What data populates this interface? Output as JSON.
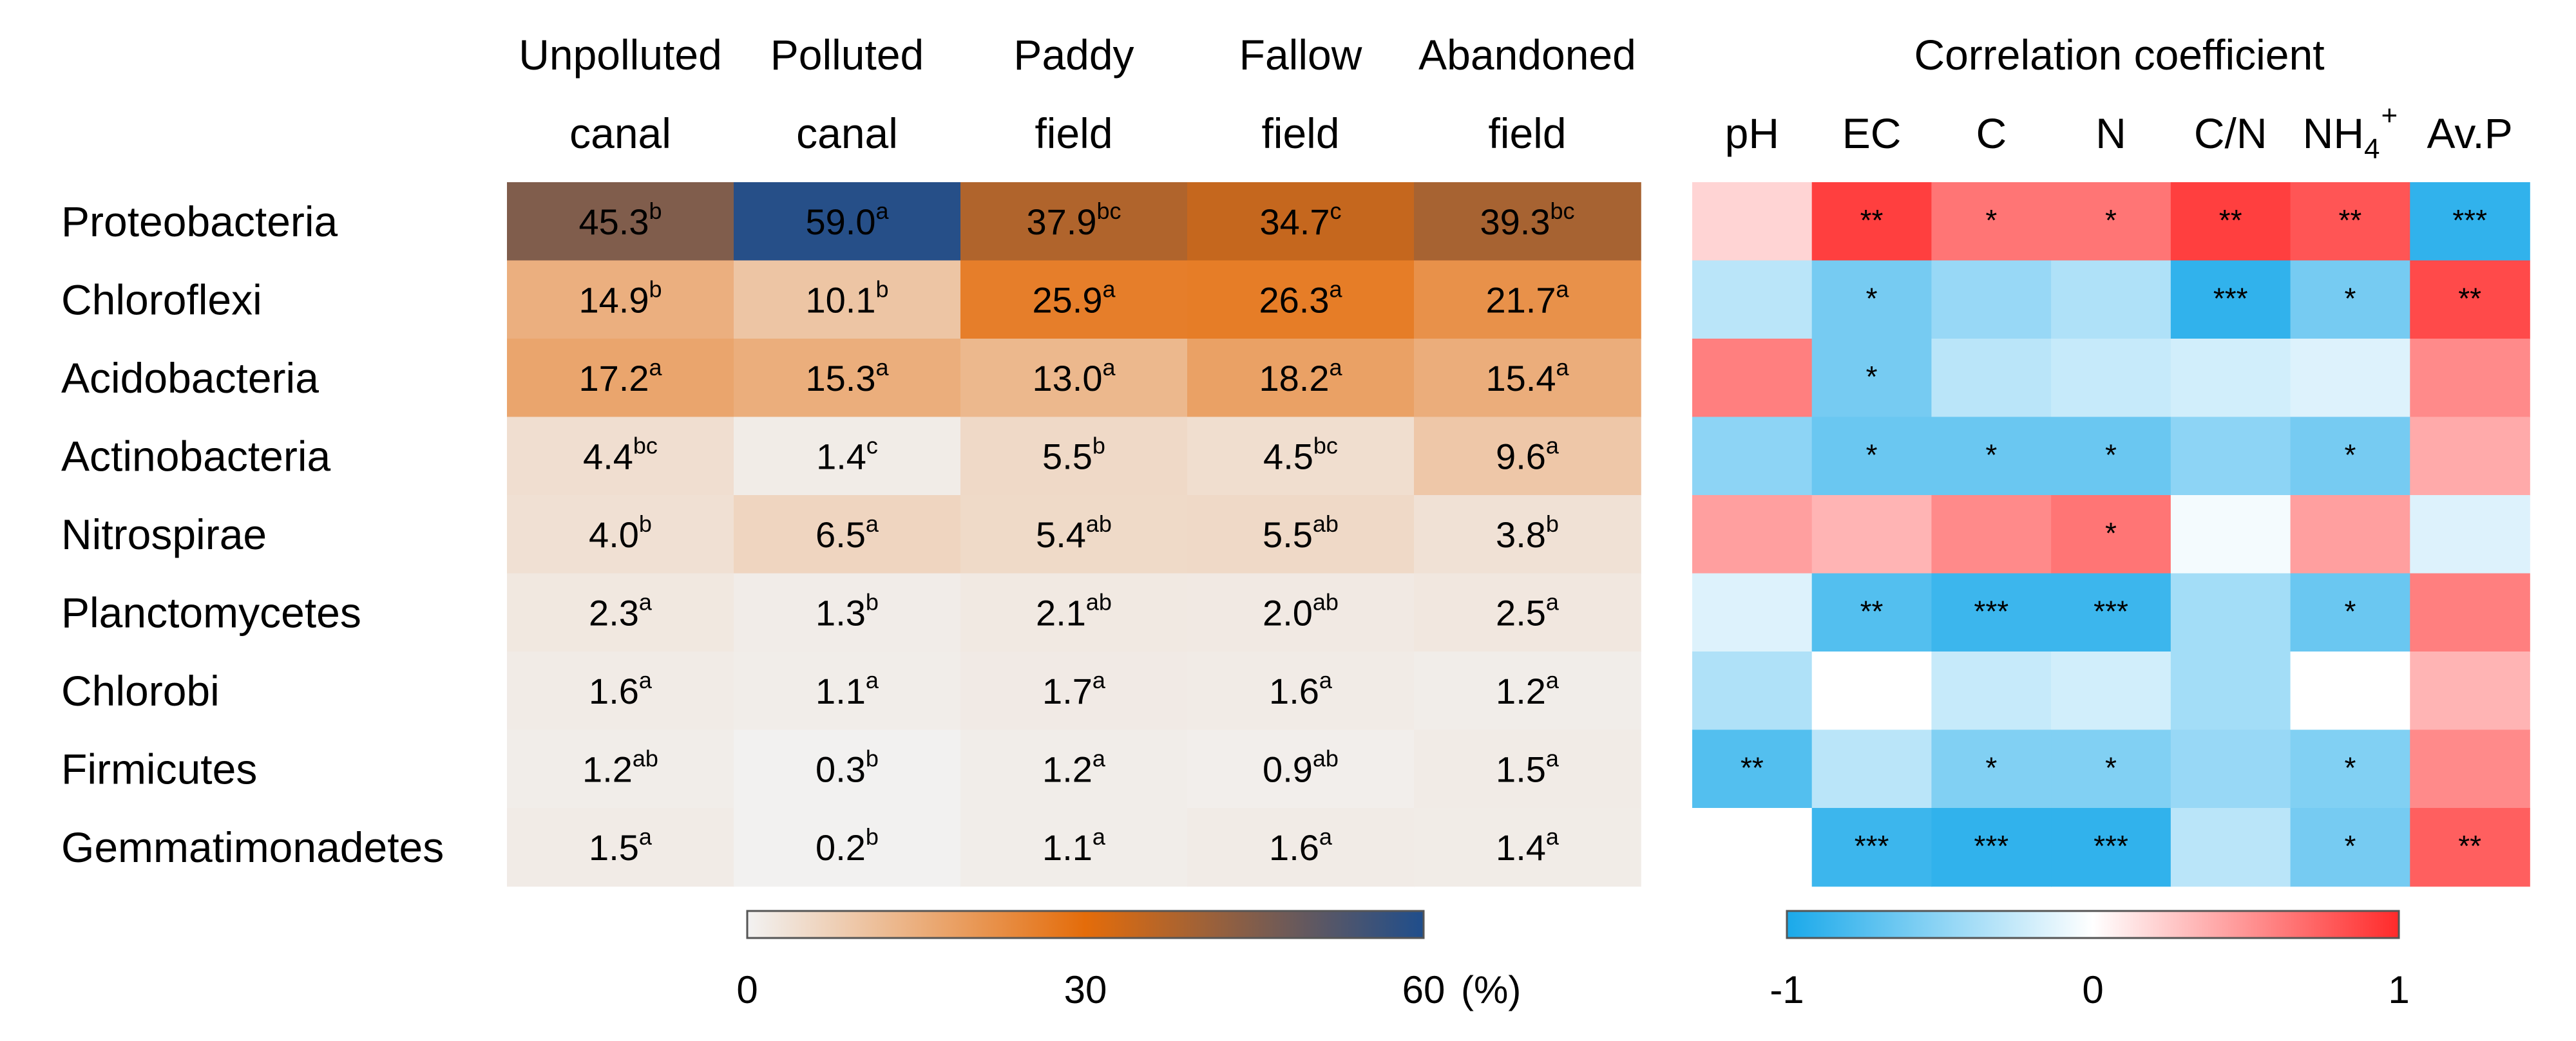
{
  "chart_data": [
    {
      "type": "heatmap",
      "title": "",
      "units": "%",
      "columns": [
        {
          "line1": "Unpolluted",
          "line2": "canal"
        },
        {
          "line1": "Polluted",
          "line2": "canal"
        },
        {
          "line1": "Paddy",
          "line2": "field"
        },
        {
          "line1": "Fallow",
          "line2": "field"
        },
        {
          "line1": "Abandoned",
          "line2": "field"
        }
      ],
      "rows": [
        "Proteobacteria",
        "Chloroflexi",
        "Acidobacteria",
        "Actinobacteria",
        "Nitrospirae",
        "Planctomycetes",
        "Chlorobi",
        "Firmicutes",
        "Gemmatimonadetes"
      ],
      "values": [
        [
          45.3,
          59.0,
          37.9,
          34.7,
          39.3
        ],
        [
          14.9,
          10.1,
          25.9,
          26.3,
          21.7
        ],
        [
          17.2,
          15.3,
          13.0,
          18.2,
          15.4
        ],
        [
          4.4,
          1.4,
          5.5,
          4.5,
          9.6
        ],
        [
          4.0,
          6.5,
          5.4,
          5.5,
          3.8
        ],
        [
          2.3,
          1.3,
          2.1,
          2.0,
          2.5
        ],
        [
          1.6,
          1.1,
          1.7,
          1.6,
          1.2
        ],
        [
          1.2,
          0.3,
          1.2,
          0.9,
          1.5
        ],
        [
          1.5,
          0.2,
          1.1,
          1.6,
          1.4
        ]
      ],
      "labels": [
        [
          "45.3",
          "59.0",
          "37.9",
          "34.7",
          "39.3"
        ],
        [
          "14.9",
          "10.1",
          "25.9",
          "26.3",
          "21.7"
        ],
        [
          "17.2",
          "15.3",
          "13.0",
          "18.2",
          "15.4"
        ],
        [
          "4.4",
          "1.4",
          "5.5",
          "4.5",
          "9.6"
        ],
        [
          "4.0",
          "6.5",
          "5.4",
          "5.5",
          "3.8"
        ],
        [
          "2.3",
          "1.3",
          "2.1",
          "2.0",
          "2.5"
        ],
        [
          "1.6",
          "1.1",
          "1.7",
          "1.6",
          "1.2"
        ],
        [
          "1.2",
          "0.3",
          "1.2",
          "0.9",
          "1.5"
        ],
        [
          "1.5",
          "0.2",
          "1.1",
          "1.6",
          "1.4"
        ]
      ],
      "letters": [
        [
          "b",
          "a",
          "bc",
          "c",
          "bc"
        ],
        [
          "b",
          "b",
          "a",
          "a",
          "a"
        ],
        [
          "a",
          "a",
          "a",
          "a",
          "a"
        ],
        [
          "bc",
          "c",
          "b",
          "bc",
          "a"
        ],
        [
          "b",
          "a",
          "ab",
          "ab",
          "b"
        ],
        [
          "a",
          "b",
          "ab",
          "ab",
          "a"
        ],
        [
          "a",
          "a",
          "a",
          "a",
          "a"
        ],
        [
          "ab",
          "b",
          "a",
          "ab",
          "a"
        ],
        [
          "a",
          "b",
          "a",
          "a",
          "a"
        ]
      ],
      "colorbar": {
        "ticks": [
          "0",
          "30",
          "60"
        ],
        "unit_label": "(%)",
        "range": [
          0,
          60
        ],
        "stops": [
          "#f2f2f2",
          "#e46c0a",
          "#1f4e8c"
        ]
      }
    },
    {
      "type": "heatmap",
      "title": "Correlation coefficient",
      "columns": [
        "pH",
        "EC",
        "C",
        "N",
        "C/N",
        "NH4+",
        "Av.P"
      ],
      "column_display": [
        {
          "base": "pH",
          "sub": "",
          "sup": ""
        },
        {
          "base": "EC",
          "sub": "",
          "sup": ""
        },
        {
          "base": "C",
          "sub": "",
          "sup": ""
        },
        {
          "base": "N",
          "sub": "",
          "sup": ""
        },
        {
          "base": "C/N",
          "sub": "",
          "sup": ""
        },
        {
          "base": "NH",
          "sub": "4",
          "sup": "+"
        },
        {
          "base": "Av.P",
          "sub": "",
          "sup": ""
        }
      ],
      "rows": [
        "Proteobacteria",
        "Chloroflexi",
        "Acidobacteria",
        "Actinobacteria",
        "Nitrospirae",
        "Planctomycetes",
        "Chlorobi",
        "Firmicutes",
        "Gemmatimonadetes"
      ],
      "values": [
        [
          0.2,
          0.9,
          0.65,
          0.65,
          0.9,
          0.8,
          -0.9
        ],
        [
          -0.3,
          -0.6,
          -0.45,
          -0.35,
          -0.9,
          -0.6,
          0.85
        ],
        [
          0.6,
          -0.6,
          -0.3,
          -0.25,
          -0.2,
          -0.15,
          0.55
        ],
        [
          -0.5,
          -0.65,
          -0.65,
          -0.65,
          -0.5,
          -0.6,
          0.4
        ],
        [
          0.45,
          0.35,
          0.55,
          0.65,
          -0.05,
          0.45,
          -0.15
        ],
        [
          -0.15,
          -0.75,
          -0.85,
          -0.85,
          -0.4,
          -0.65,
          0.6
        ],
        [
          -0.35,
          0.0,
          -0.25,
          -0.2,
          -0.4,
          0.0,
          0.35
        ],
        [
          -0.75,
          -0.3,
          -0.55,
          -0.55,
          -0.45,
          -0.55,
          0.55
        ],
        [
          0.0,
          -0.85,
          -0.9,
          -0.9,
          -0.3,
          -0.6,
          0.75
        ]
      ],
      "stars": [
        [
          "",
          "**",
          "*",
          "*",
          "**",
          "**",
          "***"
        ],
        [
          "",
          "*",
          "",
          "",
          "***",
          "*",
          "**"
        ],
        [
          "",
          "*",
          "",
          "",
          "",
          "",
          ""
        ],
        [
          "",
          "*",
          "*",
          "*",
          "",
          "*",
          ""
        ],
        [
          "",
          "",
          "",
          "*",
          "",
          "",
          ""
        ],
        [
          "",
          "**",
          "***",
          "***",
          "",
          "*",
          ""
        ],
        [
          "",
          "",
          "",
          "",
          "",
          "",
          ""
        ],
        [
          "**",
          "",
          "*",
          "*",
          "",
          "*",
          ""
        ],
        [
          "",
          "***",
          "***",
          "***",
          "",
          "*",
          "**"
        ]
      ],
      "colorbar": {
        "ticks": [
          "-1",
          "0",
          "1"
        ],
        "range": [
          -1,
          1
        ],
        "stops": [
          "#1aa9ea",
          "#ffffff",
          "#ff2a2a"
        ]
      }
    }
  ]
}
